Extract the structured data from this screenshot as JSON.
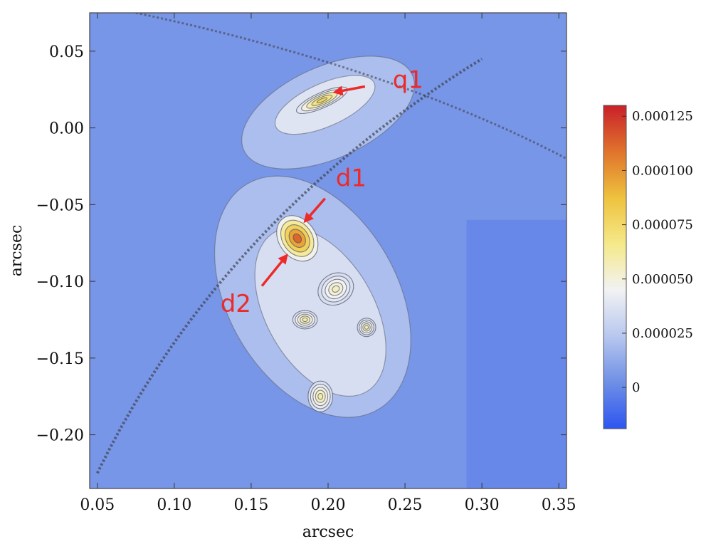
{
  "chart_data": {
    "type": "heatmap",
    "title": "",
    "xlabel": "arcsec",
    "ylabel": "arcsec",
    "xlim": [
      0.045,
      0.355
    ],
    "ylim": [
      -0.235,
      0.075
    ],
    "xticks": [
      {
        "value": 0.05,
        "label": "0.05"
      },
      {
        "value": 0.1,
        "label": "0.10"
      },
      {
        "value": 0.15,
        "label": "0.15"
      },
      {
        "value": 0.2,
        "label": "0.20"
      },
      {
        "value": 0.25,
        "label": "0.25"
      },
      {
        "value": 0.3,
        "label": "0.30"
      },
      {
        "value": 0.35,
        "label": "0.35"
      }
    ],
    "yticks": [
      {
        "value": 0.05,
        "label": "0.05"
      },
      {
        "value": 0.0,
        "label": "0.00"
      },
      {
        "value": -0.05,
        "label": "−0.05"
      },
      {
        "value": -0.1,
        "label": "−0.10"
      },
      {
        "value": -0.15,
        "label": "−0.15"
      },
      {
        "value": -0.2,
        "label": "−0.20"
      }
    ],
    "colorbar": {
      "range": [
        -1.9e-05,
        0.00013
      ],
      "ticks": [
        {
          "value": 0.000125,
          "label": "0.000125"
        },
        {
          "value": 0.0001,
          "label": "0.000100"
        },
        {
          "value": 7.5e-05,
          "label": "0.000075"
        },
        {
          "value": 5e-05,
          "label": "0.000050"
        },
        {
          "value": 2.5e-05,
          "label": "0.000025"
        },
        {
          "value": 0,
          "label": "0"
        }
      ],
      "colors": [
        "#2d55f0",
        "#6f8fe6",
        "#b7c7ee",
        "#f2f2f4",
        "#f5e98a",
        "#eec23e",
        "#e0732c",
        "#c9202a"
      ]
    },
    "features": [
      {
        "name": "peak",
        "x": 0.196,
        "y": 0.018,
        "value": 7.8e-05,
        "rx": 0.018,
        "ry": 0.005,
        "angle": -24
      },
      {
        "name": "peak",
        "x": 0.18,
        "y": -0.072,
        "value": 0.000112,
        "rx": 0.012,
        "ry": 0.016,
        "angle": -35
      },
      {
        "name": "peak",
        "x": 0.185,
        "y": -0.125,
        "value": 6.2e-05,
        "rx": 0.008,
        "ry": 0.006,
        "angle": 0
      },
      {
        "name": "peak",
        "x": 0.205,
        "y": -0.105,
        "value": 5.5e-05,
        "rx": 0.012,
        "ry": 0.01,
        "angle": -30
      },
      {
        "name": "peak",
        "x": 0.195,
        "y": -0.175,
        "value": 6e-05,
        "rx": 0.008,
        "ry": 0.01,
        "angle": 0
      },
      {
        "name": "peak",
        "x": 0.225,
        "y": -0.13,
        "value": 5.8e-05,
        "rx": 0.006,
        "ry": 0.006,
        "angle": 0
      }
    ],
    "annotations": [
      {
        "text": "q1",
        "label_x": 0.242,
        "label_y": 0.026,
        "arrow_from": [
          0.224,
          0.027
        ],
        "arrow_to": [
          0.203,
          0.023
        ]
      },
      {
        "text": "d1",
        "label_x": 0.205,
        "label_y": -0.038,
        "arrow_from": [
          0.198,
          -0.046
        ],
        "arrow_to": [
          0.184,
          -0.062
        ]
      },
      {
        "text": "d2",
        "label_x": 0.13,
        "label_y": -0.12,
        "arrow_from": [
          0.157,
          -0.103
        ],
        "arrow_to": [
          0.174,
          -0.082
        ]
      }
    ]
  }
}
